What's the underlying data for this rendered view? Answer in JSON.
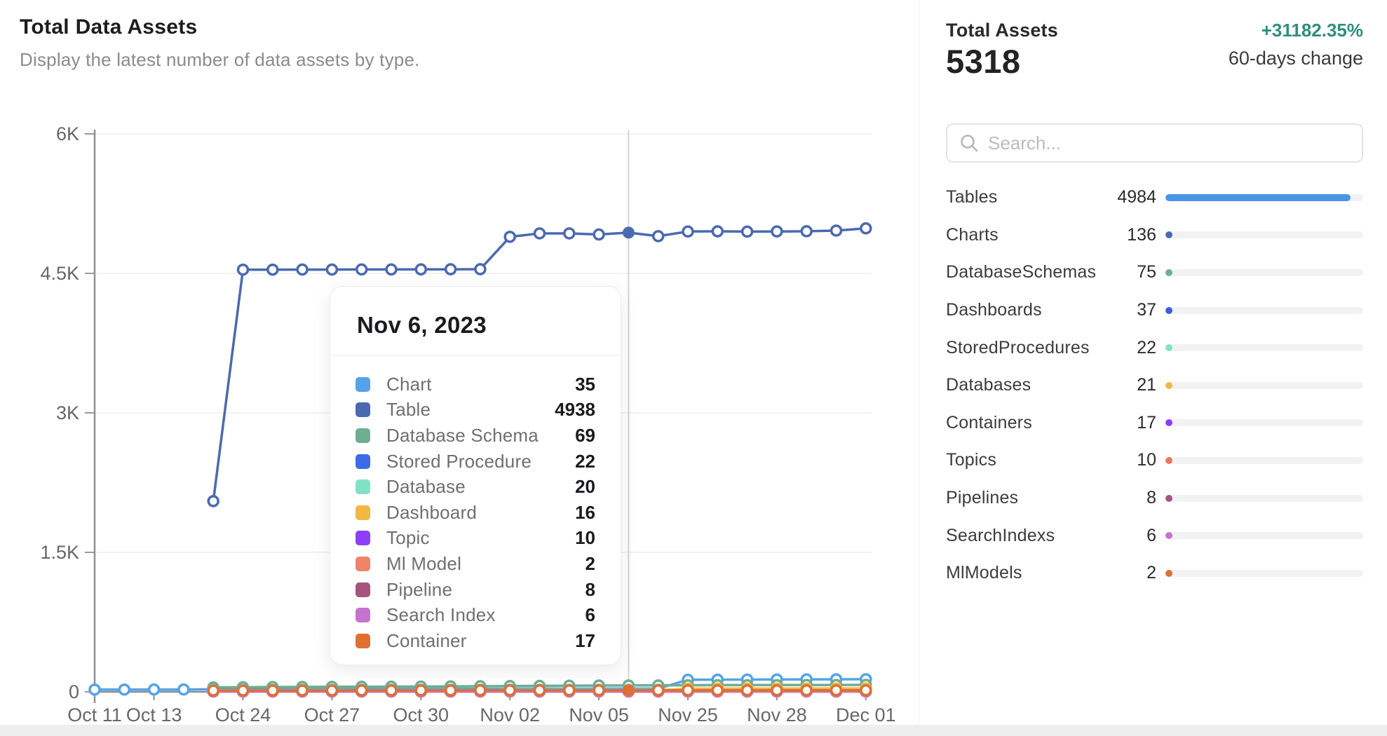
{
  "header": {
    "title": "Total Data Assets",
    "subtitle": "Display the latest number of data assets by type."
  },
  "summary": {
    "label": "Total Assets",
    "value": "5318",
    "change": "+31182.35%",
    "change_color": "#2e8f7e",
    "change_period": "60-days change"
  },
  "search": {
    "placeholder": "Search..."
  },
  "asset_list": [
    {
      "label": "Tables",
      "value": 4984,
      "color": "#4a94e5"
    },
    {
      "label": "Charts",
      "value": 136,
      "color": "#4a69b1"
    },
    {
      "label": "DatabaseSchemas",
      "value": 75,
      "color": "#6fae8f"
    },
    {
      "label": "Dashboards",
      "value": 37,
      "color": "#3b5be0"
    },
    {
      "label": "StoredProcedures",
      "value": 22,
      "color": "#7fe3c3"
    },
    {
      "label": "Databases",
      "value": 21,
      "color": "#f2b844"
    },
    {
      "label": "Containers",
      "value": 17,
      "color": "#8b3ff6"
    },
    {
      "label": "Topics",
      "value": 10,
      "color": "#ee7458"
    },
    {
      "label": "Pipelines",
      "value": 8,
      "color": "#a4547e"
    },
    {
      "label": "SearchIndexs",
      "value": 6,
      "color": "#c473ce"
    },
    {
      "label": "MlModels",
      "value": 2,
      "color": "#dd7032"
    }
  ],
  "tooltip": {
    "title": "Nov 6, 2023",
    "rows": [
      {
        "label": "Chart",
        "value": 35,
        "color": "#55a3e8"
      },
      {
        "label": "Table",
        "value": 4938,
        "color": "#4a69b1"
      },
      {
        "label": "Database Schema",
        "value": 69,
        "color": "#6fae8f"
      },
      {
        "label": "Stored Procedure",
        "value": 22,
        "color": "#3b6be8"
      },
      {
        "label": "Database",
        "value": 20,
        "color": "#7fe3c3"
      },
      {
        "label": "Dashboard",
        "value": 16,
        "color": "#f2b844"
      },
      {
        "label": "Topic",
        "value": 10,
        "color": "#8b3ff6"
      },
      {
        "label": "Ml Model",
        "value": 2,
        "color": "#ee8568"
      },
      {
        "label": "Pipeline",
        "value": 8,
        "color": "#a4547e"
      },
      {
        "label": "Search Index",
        "value": 6,
        "color": "#c473ce"
      },
      {
        "label": "Container",
        "value": 17,
        "color": "#dd7032"
      }
    ]
  },
  "chart_data": {
    "type": "line",
    "title": "Total Data Assets",
    "xlabel": "",
    "ylabel": "",
    "ylim": [
      0,
      6000
    ],
    "grid": true,
    "legend_position": "tooltip-only",
    "yticks": [
      {
        "value": 0,
        "label": "0"
      },
      {
        "value": 1500,
        "label": "1.5K"
      },
      {
        "value": 3000,
        "label": "3K"
      },
      {
        "value": 4500,
        "label": "4.5K"
      },
      {
        "value": 6000,
        "label": "6K"
      }
    ],
    "x": [
      "Oct 11",
      "Oct 12",
      "Oct 13",
      "Oct 14",
      "Oct 23",
      "Oct 24",
      "Oct 25",
      "Oct 26",
      "Oct 27",
      "Oct 28",
      "Oct 29",
      "Oct 30",
      "Oct 31",
      "Nov 01",
      "Nov 02",
      "Nov 03",
      "Nov 04",
      "Nov 05",
      "Nov 06",
      "Nov 24",
      "Nov 25",
      "Nov 26",
      "Nov 27",
      "Nov 28",
      "Nov 29",
      "Nov 30",
      "Dec 01"
    ],
    "x_tick_indices": [
      0,
      2,
      5,
      8,
      11,
      14,
      17,
      20,
      23,
      26
    ],
    "x_tick_labels": [
      "Oct 11",
      "Oct 13",
      "Oct 24",
      "Oct 27",
      "Oct 30",
      "Nov 02",
      "Nov 05",
      "Nov 25",
      "Nov 28",
      "Dec 01"
    ],
    "highlight_index": 18,
    "highlight_series": [
      "Table",
      "Container"
    ],
    "crosshair_color": "#d4d4d4",
    "series": [
      {
        "name": "Chart",
        "color": "#55a3e8",
        "values": [
          24,
          24,
          25,
          25,
          28,
          29,
          29,
          30,
          30,
          31,
          31,
          31,
          32,
          32,
          33,
          34,
          34,
          35,
          35,
          35,
          130,
          131,
          132,
          133,
          134,
          135,
          136
        ]
      },
      {
        "name": "Table",
        "color": "#4a69b1",
        "values": [
          null,
          null,
          null,
          null,
          2051,
          4540,
          4540,
          4541,
          4541,
          4542,
          4542,
          4543,
          4544,
          4545,
          4893,
          4930,
          4930,
          4918,
          4938,
          4900,
          4950,
          4952,
          4949,
          4951,
          4953,
          4960,
          4984
        ]
      },
      {
        "name": "Database Schema",
        "color": "#6fae8f",
        "values": [
          null,
          null,
          null,
          null,
          48,
          50,
          52,
          53,
          54,
          55,
          56,
          57,
          58,
          60,
          62,
          64,
          66,
          68,
          69,
          69,
          71,
          72,
          72,
          73,
          74,
          74,
          75
        ]
      },
      {
        "name": "Stored Procedure",
        "color": "#3b6be8",
        "values": [
          null,
          null,
          null,
          null,
          20,
          20,
          20,
          21,
          21,
          21,
          21,
          21,
          21,
          21,
          22,
          22,
          22,
          22,
          22,
          22,
          22,
          22,
          22,
          22,
          22,
          22,
          22
        ]
      },
      {
        "name": "Database",
        "color": "#7fe3c3",
        "values": [
          null,
          null,
          null,
          null,
          18,
          18,
          18,
          19,
          19,
          19,
          19,
          19,
          19,
          19,
          20,
          20,
          20,
          20,
          20,
          20,
          21,
          21,
          21,
          21,
          21,
          21,
          21
        ]
      },
      {
        "name": "Dashboard",
        "color": "#f2b844",
        "values": [
          null,
          null,
          null,
          null,
          12,
          12,
          13,
          13,
          13,
          14,
          14,
          14,
          15,
          15,
          16,
          16,
          16,
          16,
          16,
          16,
          35,
          35,
          36,
          36,
          36,
          37,
          37
        ]
      },
      {
        "name": "Topic",
        "color": "#8b3ff6",
        "values": [
          null,
          null,
          null,
          null,
          8,
          8,
          8,
          9,
          9,
          9,
          9,
          9,
          10,
          10,
          10,
          10,
          10,
          10,
          10,
          10,
          10,
          10,
          10,
          10,
          10,
          10,
          10
        ]
      },
      {
        "name": "Ml Model",
        "color": "#ee8568",
        "values": [
          null,
          null,
          null,
          null,
          2,
          2,
          2,
          2,
          2,
          2,
          2,
          2,
          2,
          2,
          2,
          2,
          2,
          2,
          2,
          2,
          2,
          2,
          2,
          2,
          2,
          2,
          2
        ]
      },
      {
        "name": "Pipeline",
        "color": "#a4547e",
        "values": [
          null,
          null,
          null,
          null,
          6,
          6,
          6,
          7,
          7,
          7,
          7,
          7,
          8,
          8,
          8,
          8,
          8,
          8,
          8,
          8,
          8,
          8,
          8,
          8,
          8,
          8,
          8
        ]
      },
      {
        "name": "Search Index",
        "color": "#c473ce",
        "values": [
          null,
          null,
          null,
          null,
          5,
          5,
          5,
          5,
          5,
          6,
          6,
          6,
          6,
          6,
          6,
          6,
          6,
          6,
          6,
          6,
          6,
          6,
          6,
          6,
          6,
          6,
          6
        ]
      },
      {
        "name": "Container",
        "color": "#dd7032",
        "values": [
          null,
          null,
          null,
          null,
          14,
          14,
          15,
          15,
          15,
          16,
          16,
          16,
          16,
          17,
          17,
          17,
          17,
          17,
          17,
          17,
          17,
          17,
          17,
          17,
          17,
          17,
          17
        ]
      }
    ]
  }
}
